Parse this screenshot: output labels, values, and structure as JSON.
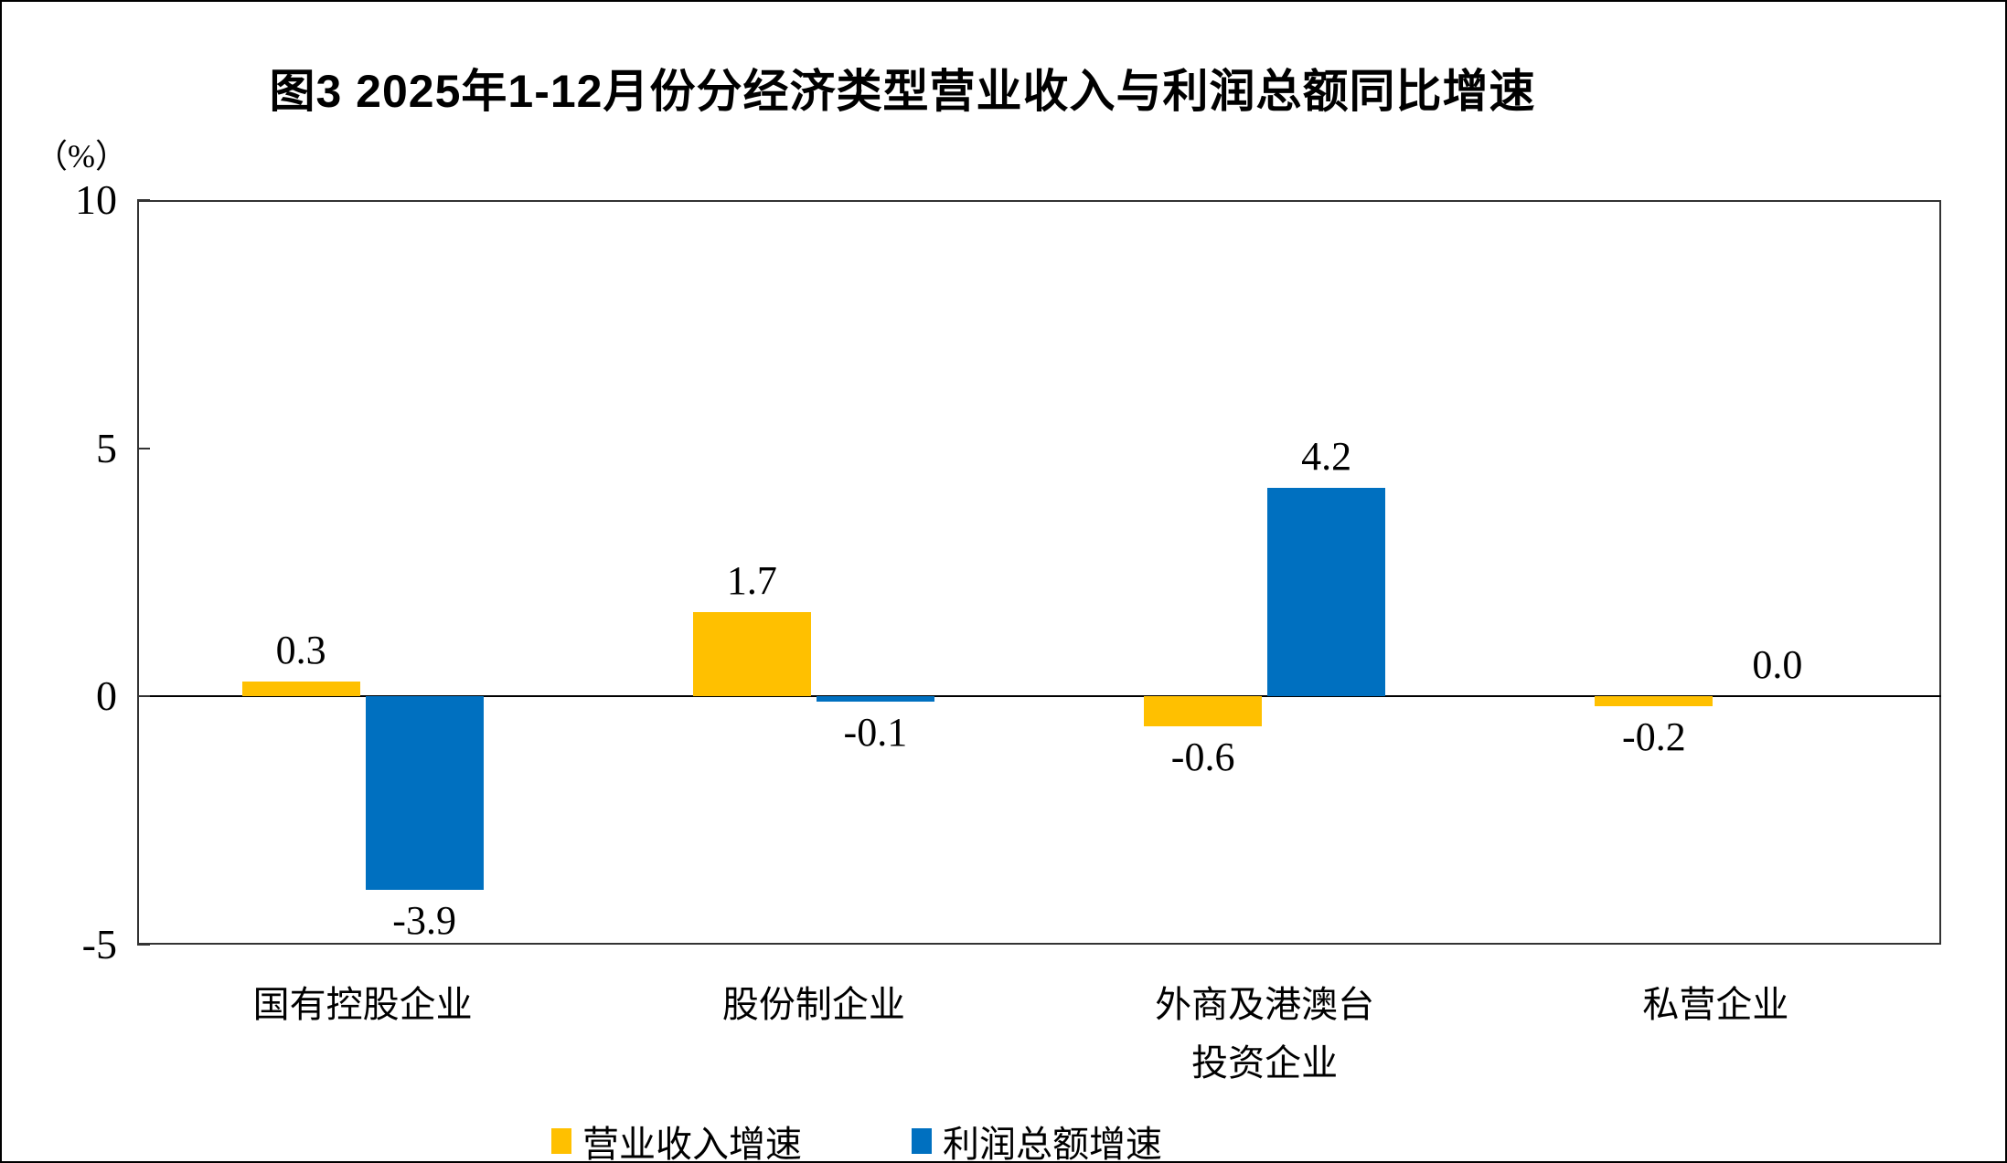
{
  "title": "图3 2025年1-12月份分经济类型营业收入与利润总额同比增速",
  "unit_label": "（%）",
  "chart_data": {
    "type": "bar",
    "title": "图3 2025年1-12月份分经济类型营业收入与利润总额同比增速",
    "ylabel": "（%）",
    "categories": [
      "国有控股企业",
      "股份制企业",
      "外商及港澳台\n投资企业",
      "私营企业"
    ],
    "series": [
      {
        "name": "营业收入增速",
        "color": "#FFC000",
        "values": [
          0.3,
          1.7,
          -0.6,
          -0.2
        ]
      },
      {
        "name": "利润总额增速",
        "color": "#0070C0",
        "values": [
          -3.9,
          -0.1,
          4.2,
          0.0
        ]
      }
    ],
    "ylim": [
      -5,
      10
    ],
    "yticks": [
      10,
      5,
      0,
      -5
    ],
    "grid": false,
    "legend_position": "bottom",
    "value_label_decimals": 1
  }
}
